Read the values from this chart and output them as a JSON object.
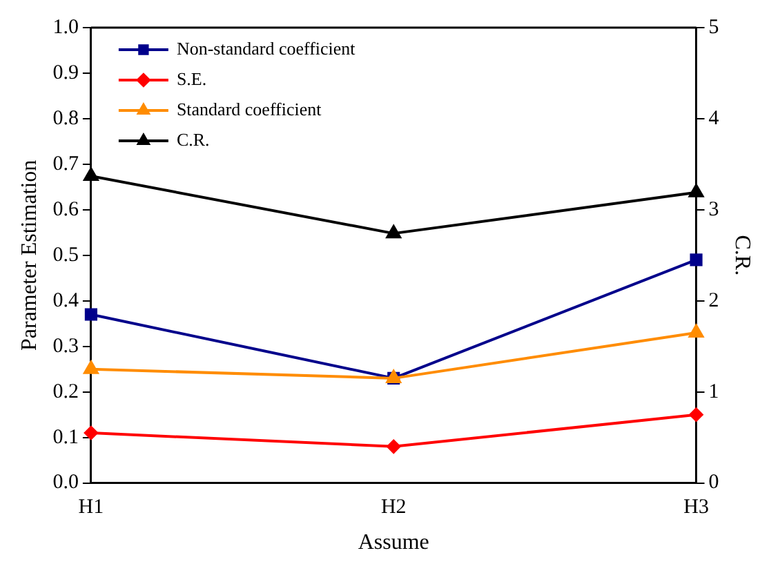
{
  "chart_data": {
    "type": "line",
    "xlabel": "Assume",
    "ylabel": "Parameter Estimation",
    "y2label": "C.R.",
    "categories": [
      "H1",
      "H2",
      "H3"
    ],
    "series": [
      {
        "name": "Non-standard coefficient",
        "color": "#00008b",
        "values": [
          0.37,
          0.23,
          0.49
        ],
        "marker": "square"
      },
      {
        "name": "S.E.",
        "color": "#ff0000",
        "values": [
          0.11,
          0.08,
          0.15
        ],
        "marker": "diamond"
      },
      {
        "name": "Standard coefficient",
        "color": "#ff8c00",
        "values": [
          0.25,
          0.23,
          0.33
        ],
        "marker": "triangle"
      },
      {
        "name": "C.R.",
        "color": "#000000",
        "values": [
          3.37,
          2.74,
          3.19
        ],
        "marker": "triangle",
        "axis": "y2"
      }
    ],
    "ylim": [
      0,
      1
    ],
    "yticks": [
      {
        "value": 0,
        "label": "0.0"
      },
      {
        "value": 0.1,
        "label": "0.1"
      },
      {
        "value": 0.2,
        "label": "0.2"
      },
      {
        "value": 0.3,
        "label": "0.3"
      },
      {
        "value": 0.4,
        "label": "0.4"
      },
      {
        "value": 0.5,
        "label": "0.5"
      },
      {
        "value": 0.6,
        "label": "0.6"
      },
      {
        "value": 0.7,
        "label": "0.7"
      },
      {
        "value": 0.8,
        "label": "0.8"
      },
      {
        "value": 0.9,
        "label": "0.9"
      },
      {
        "value": 1,
        "label": "1.0"
      }
    ],
    "y2lim": [
      0,
      5
    ],
    "y2ticks": [
      0,
      1,
      2,
      3,
      4,
      5
    ],
    "grid": false,
    "legend": "top left",
    "line_style": "solid"
  }
}
